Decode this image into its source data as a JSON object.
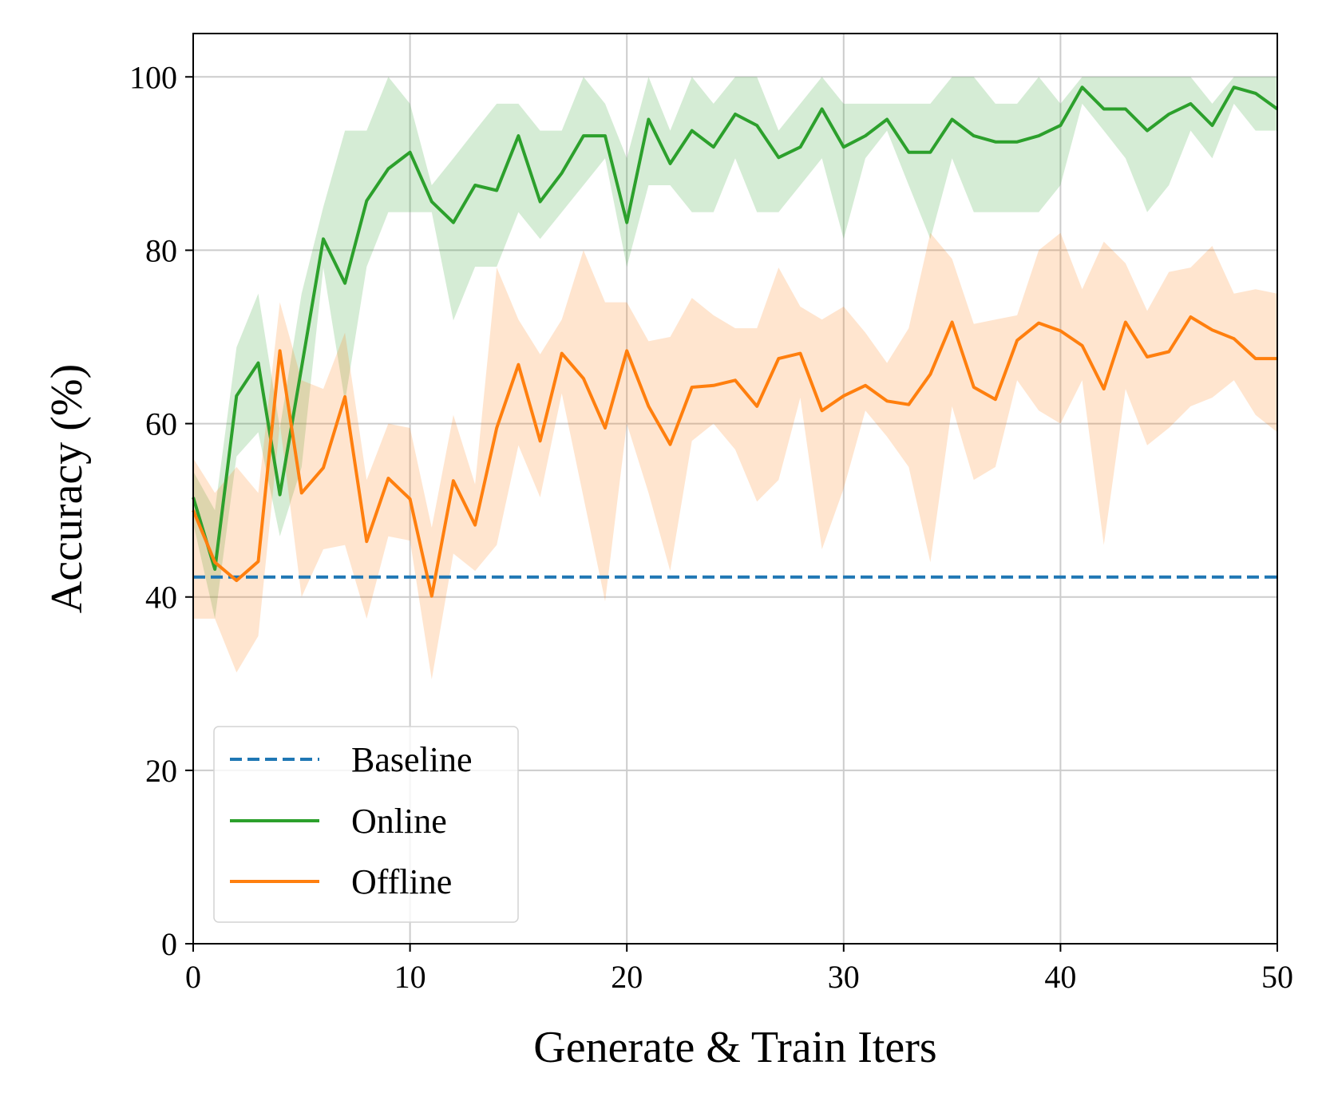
{
  "chart_data": {
    "type": "line",
    "title": "",
    "xlabel": "Generate & Train Iters",
    "ylabel": "Accuracy (%)",
    "xlim": [
      0,
      50
    ],
    "ylim": [
      0,
      105
    ],
    "xticks": [
      0,
      10,
      20,
      30,
      40,
      50
    ],
    "yticks": [
      0,
      20,
      40,
      60,
      80,
      100
    ],
    "grid": true,
    "legend_position": "bottom-left",
    "x": [
      0,
      1,
      2,
      3,
      4,
      5,
      6,
      7,
      8,
      9,
      10,
      11,
      12,
      13,
      14,
      15,
      16,
      17,
      18,
      19,
      20,
      21,
      22,
      23,
      24,
      25,
      26,
      27,
      28,
      29,
      30,
      31,
      32,
      33,
      34,
      35,
      36,
      37,
      38,
      39,
      40,
      41,
      42,
      43,
      44,
      45,
      46,
      47,
      48,
      49,
      50
    ],
    "series": [
      {
        "name": "Baseline",
        "style": "dashed",
        "color": "#1f77b4",
        "value": 42.3
      },
      {
        "name": "Online",
        "style": "solid",
        "color": "#2ca02c",
        "values": [
          51.5,
          43.2,
          63.2,
          67.0,
          51.8,
          66.5,
          81.3,
          76.2,
          85.7,
          89.4,
          91.3,
          85.6,
          83.2,
          87.5,
          86.9,
          93.2,
          85.6,
          88.9,
          93.2,
          93.2,
          83.2,
          95.1,
          90.0,
          93.8,
          91.9,
          95.7,
          94.4,
          90.7,
          91.9,
          96.3,
          91.9,
          93.2,
          95.1,
          91.3,
          91.3,
          95.1,
          93.2,
          92.5,
          92.5,
          93.2,
          94.4,
          98.8,
          96.3,
          96.3,
          93.8,
          95.7,
          96.9,
          94.4,
          98.8,
          98.1,
          96.3
        ],
        "band_upper": [
          54.5,
          50.0,
          68.8,
          75.0,
          59.5,
          75.0,
          85.0,
          93.8,
          93.8,
          100.0,
          96.9,
          87.5,
          90.6,
          93.8,
          96.9,
          96.9,
          93.8,
          93.8,
          100.0,
          96.9,
          90.6,
          100.0,
          93.8,
          100.0,
          96.9,
          100.0,
          100.0,
          93.8,
          96.9,
          100.0,
          96.9,
          96.9,
          96.9,
          96.9,
          96.9,
          100.0,
          100.0,
          96.9,
          96.9,
          100.0,
          96.9,
          100.0,
          100.0,
          100.0,
          100.0,
          100.0,
          100.0,
          96.9,
          100.0,
          100.0,
          100.0
        ],
        "band_lower": [
          48.5,
          37.5,
          56.2,
          59.0,
          47.0,
          55.0,
          78.0,
          62.5,
          78.1,
          84.4,
          84.4,
          84.4,
          71.9,
          78.1,
          78.1,
          84.4,
          81.3,
          84.4,
          87.5,
          90.6,
          78.1,
          87.5,
          87.5,
          84.4,
          84.4,
          90.6,
          84.4,
          84.4,
          87.5,
          90.6,
          81.3,
          90.6,
          93.8,
          87.5,
          81.3,
          90.6,
          84.4,
          84.4,
          84.4,
          84.4,
          87.5,
          96.9,
          93.8,
          90.6,
          84.4,
          87.5,
          93.8,
          90.6,
          96.9,
          93.8,
          93.8
        ]
      },
      {
        "name": "Offline",
        "style": "solid",
        "color": "#ff7f0e",
        "values": [
          50.0,
          44.0,
          41.9,
          44.1,
          68.4,
          52.0,
          54.9,
          63.1,
          46.4,
          53.7,
          51.3,
          40.1,
          53.4,
          48.3,
          59.5,
          66.8,
          58.0,
          68.1,
          65.2,
          59.5,
          68.4,
          62.0,
          57.6,
          64.2,
          64.4,
          65.0,
          62.0,
          67.5,
          68.1,
          61.5,
          63.2,
          64.4,
          62.6,
          62.2,
          65.7,
          71.7,
          64.2,
          62.8,
          69.6,
          71.6,
          70.7,
          69.0,
          64.0,
          71.7,
          67.7,
          68.3,
          72.3,
          70.8,
          69.8,
          67.5,
          67.5
        ],
        "band_upper": [
          56.0,
          52.0,
          55.0,
          52.0,
          74.0,
          65.0,
          64.0,
          70.5,
          53.5,
          60.0,
          59.5,
          48.0,
          61.0,
          53.0,
          78.0,
          72.0,
          68.0,
          72.0,
          80.0,
          74.0,
          74.0,
          69.5,
          70.0,
          74.5,
          72.5,
          71.0,
          71.0,
          78.0,
          73.5,
          72.0,
          73.5,
          70.5,
          67.0,
          71.0,
          82.0,
          79.0,
          71.5,
          72.0,
          72.5,
          80.0,
          82.0,
          75.5,
          81.0,
          78.5,
          73.0,
          77.5,
          78.0,
          80.5,
          75.0,
          75.5,
          75.0
        ],
        "band_lower": [
          37.5,
          37.5,
          31.3,
          35.5,
          60.0,
          40.0,
          45.5,
          46.0,
          37.5,
          47.0,
          46.5,
          30.5,
          45.0,
          43.0,
          46.0,
          57.5,
          51.5,
          63.5,
          51.5,
          39.5,
          60.0,
          52.0,
          43.0,
          58.0,
          60.0,
          57.0,
          51.0,
          53.5,
          63.0,
          45.5,
          52.5,
          61.5,
          58.5,
          55.0,
          44.0,
          62.0,
          53.5,
          55.0,
          65.0,
          61.5,
          60.0,
          65.0,
          46.0,
          64.0,
          57.5,
          59.5,
          62.0,
          63.0,
          65.0,
          61.0,
          59.0
        ]
      }
    ]
  }
}
